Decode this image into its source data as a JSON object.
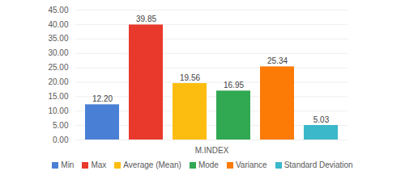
{
  "chart_data": {
    "type": "bar",
    "categories": [
      "M.INDEX"
    ],
    "series": [
      {
        "name": "Min",
        "color": "#4a7fd6",
        "values": [
          12.2
        ],
        "value_labels": [
          "12.20"
        ]
      },
      {
        "name": "Max",
        "color": "#e8392c",
        "values": [
          39.85
        ],
        "value_labels": [
          "39.85"
        ]
      },
      {
        "name": "Average (Mean)",
        "color": "#fdbd10",
        "values": [
          19.56
        ],
        "value_labels": [
          "19.56"
        ]
      },
      {
        "name": "Mode",
        "color": "#31a852",
        "values": [
          16.95
        ],
        "value_labels": [
          "16.95"
        ]
      },
      {
        "name": "Variance",
        "color": "#fb7b06",
        "values": [
          25.34
        ],
        "value_labels": [
          "25.34"
        ]
      },
      {
        "name": "Standard Deviation",
        "color": "#3bb8c9",
        "values": [
          5.03
        ],
        "value_labels": [
          "5.03"
        ]
      }
    ],
    "ylim": [
      0,
      45
    ],
    "yticks": [
      {
        "value": 0,
        "label": "0.00"
      },
      {
        "value": 5,
        "label": "5.00"
      },
      {
        "value": 10,
        "label": "10.00"
      },
      {
        "value": 15,
        "label": "15.00"
      },
      {
        "value": 20,
        "label": "20.00"
      },
      {
        "value": 25,
        "label": "25.00"
      },
      {
        "value": 30,
        "label": "30.00"
      },
      {
        "value": 35,
        "label": "35.00"
      },
      {
        "value": 40,
        "label": "40.00"
      },
      {
        "value": 45,
        "label": "45.00"
      }
    ],
    "grid": true,
    "data_labels": true,
    "legend": "bottom"
  }
}
